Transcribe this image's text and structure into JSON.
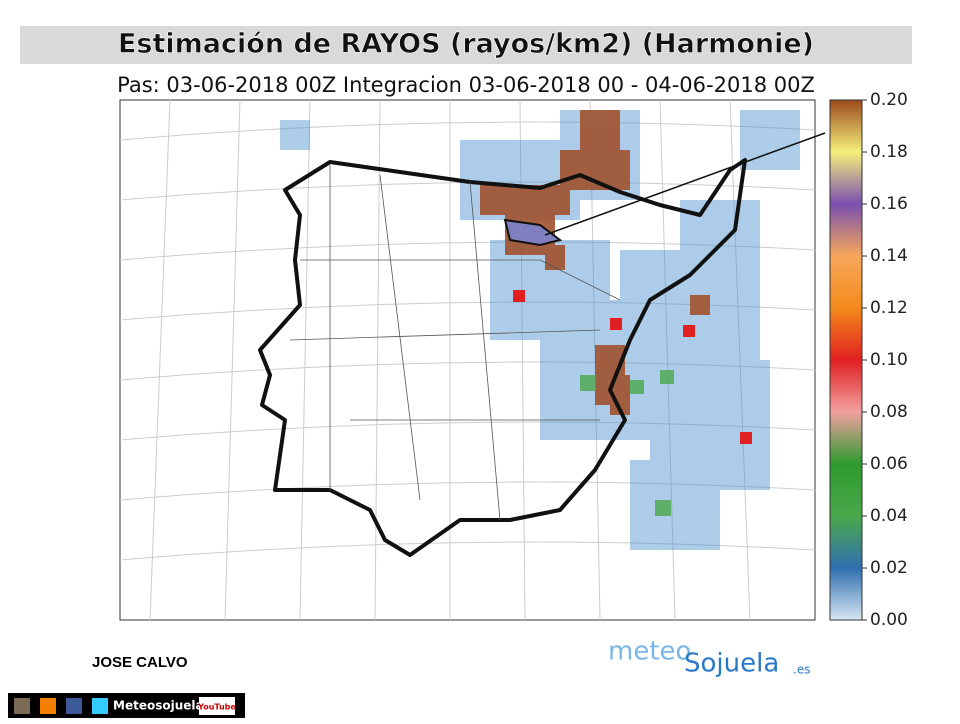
{
  "header": {
    "title": "Estimación de RAYOS (rayos/km2) (Harmonie)",
    "subtitle": "Pas: 03-06-2018 00Z Integracion 03-06-2018 00 - 04-06-2018 00Z"
  },
  "colorbar": {
    "ticks": [
      "0.00",
      "0.02",
      "0.04",
      "0.06",
      "0.08",
      "0.10",
      "0.12",
      "0.14",
      "0.16",
      "0.18",
      "0.20"
    ]
  },
  "footer": {
    "author": "JOSE CALVO",
    "logo": {
      "first": "meteo",
      "second": "Sojuela",
      "suffix": ".es"
    },
    "social": {
      "name": "Meteosojuela",
      "youtube": "YouTube"
    }
  }
}
